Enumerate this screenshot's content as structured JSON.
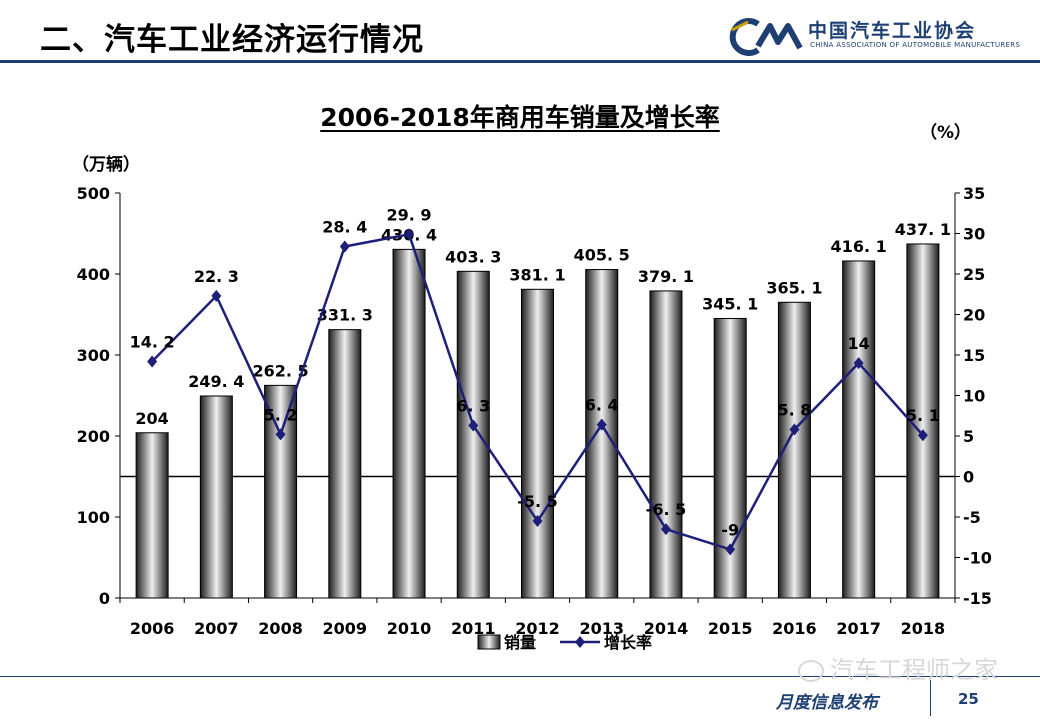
{
  "header": {
    "title": "二、汽车工业经济运行情况",
    "logo_name": "中国汽车工业协会",
    "logo_sub": "CHINA ASSOCIATION OF AUTOMOBILE MANUFACTURERS"
  },
  "chart_data": {
    "type": "bar",
    "title": "2006-2018年商用车销量及增长率",
    "categories": [
      "2006",
      "2007",
      "2008",
      "2009",
      "2010",
      "2011",
      "2012",
      "2013",
      "2014",
      "2015",
      "2016",
      "2017",
      "2018"
    ],
    "series": [
      {
        "name": "销量",
        "type": "bar",
        "axis": "left",
        "values": [
          204,
          249.4,
          262.5,
          331.3,
          430.4,
          403.3,
          381.1,
          405.5,
          379.1,
          345.1,
          365.1,
          416.1,
          437.1
        ],
        "labels": [
          "204",
          "249. 4",
          "262. 5",
          "331. 3",
          "430. 4",
          "403. 3",
          "381. 1",
          "405. 5",
          "379. 1",
          "345. 1",
          "365. 1",
          "416. 1",
          "437. 1"
        ]
      },
      {
        "name": "增长率",
        "type": "line",
        "axis": "right",
        "values": [
          14.2,
          22.3,
          5.2,
          28.4,
          29.9,
          6.3,
          -5.5,
          6.4,
          -6.5,
          -9,
          5.8,
          14,
          5.1
        ],
        "labels": [
          "14. 2",
          "22. 3",
          "5. 2",
          "28. 4",
          "29. 9",
          "6. 3",
          "-5. 5",
          "6. 4",
          "-6. 5",
          "-9",
          "5. 8",
          "14",
          "5. 1"
        ],
        "color": "#1f1f7a"
      }
    ],
    "yleft": {
      "label": "（万辆）",
      "lim": [
        0,
        500
      ],
      "ticks": [
        0,
        100,
        200,
        300,
        400,
        500
      ]
    },
    "yright": {
      "label": "（%）",
      "lim": [
        -15,
        35
      ],
      "ticks": [
        -15,
        -10,
        -5,
        0,
        5,
        10,
        15,
        20,
        25,
        30,
        35
      ]
    },
    "legend_position": "bottom",
    "grid": false
  },
  "footer": {
    "watermark": "汽车工程师之家",
    "publisher": "月度信息发布",
    "page": "25"
  }
}
